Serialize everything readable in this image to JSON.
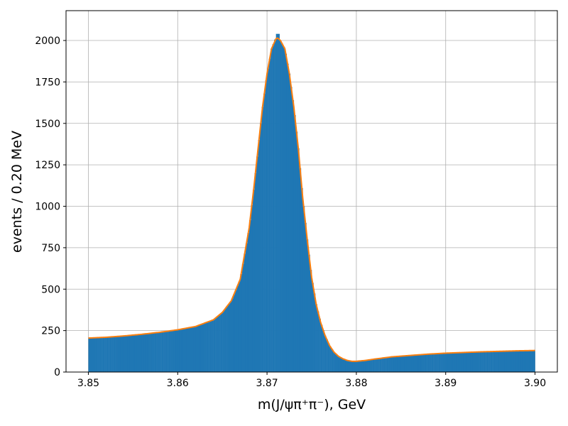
{
  "chart_data": {
    "type": "bar",
    "title": "",
    "xlabel": "m(J/ψπ⁺π⁻), GeV",
    "ylabel": "events / 0.20 MeV",
    "xlim": [
      3.8475,
      3.9025
    ],
    "ylim": [
      0,
      2180
    ],
    "grid": true,
    "x_ticks": [
      "3.85",
      "3.86",
      "3.87",
      "3.88",
      "3.89",
      "3.90"
    ],
    "y_ticks": [
      "0",
      "250",
      "500",
      "750",
      "1000",
      "1250",
      "1500",
      "1750",
      "2000"
    ],
    "bin_width": 0.0002,
    "x_range": [
      3.85,
      3.9
    ],
    "histogram_color": "#1f77b4",
    "fit_color": "#ff7f0e",
    "series": [
      {
        "kind": "histogram",
        "bin_centers": [
          3.85,
          3.852,
          3.854,
          3.856,
          3.858,
          3.86,
          3.862,
          3.864,
          3.865,
          3.866,
          3.867,
          3.868,
          3.8685,
          3.869,
          3.8695,
          3.87,
          3.8705,
          3.871,
          3.8712,
          3.8715,
          3.872,
          3.8725,
          3.873,
          3.8735,
          3.874,
          3.8745,
          3.875,
          3.8755,
          3.876,
          3.8765,
          3.877,
          3.8775,
          3.878,
          3.8785,
          3.879,
          3.8795,
          3.88,
          3.881,
          3.882,
          3.884,
          3.886,
          3.888,
          3.89,
          3.892,
          3.894,
          3.896,
          3.898,
          3.9
        ],
        "values": [
          205,
          210,
          218,
          228,
          240,
          255,
          275,
          315,
          360,
          430,
          560,
          870,
          1100,
          1350,
          1600,
          1800,
          1950,
          2020,
          2060,
          2000,
          1950,
          1800,
          1600,
          1350,
          1050,
          800,
          570,
          410,
          300,
          220,
          160,
          120,
          95,
          80,
          70,
          65,
          65,
          70,
          78,
          92,
          100,
          108,
          114,
          118,
          122,
          125,
          128,
          130
        ]
      },
      {
        "kind": "fit",
        "x": [
          3.85,
          3.852,
          3.854,
          3.856,
          3.858,
          3.86,
          3.862,
          3.864,
          3.865,
          3.866,
          3.867,
          3.868,
          3.8685,
          3.869,
          3.8695,
          3.87,
          3.8705,
          3.871,
          3.8712,
          3.8715,
          3.872,
          3.8725,
          3.873,
          3.8735,
          3.874,
          3.8745,
          3.875,
          3.8755,
          3.876,
          3.8765,
          3.877,
          3.8775,
          3.878,
          3.8785,
          3.879,
          3.8795,
          3.88,
          3.881,
          3.882,
          3.884,
          3.886,
          3.888,
          3.89,
          3.892,
          3.894,
          3.896,
          3.898,
          3.9
        ],
        "values": [
          205,
          210,
          218,
          228,
          240,
          255,
          275,
          315,
          360,
          430,
          560,
          870,
          1100,
          1350,
          1600,
          1800,
          1950,
          2010,
          2015,
          2000,
          1950,
          1800,
          1600,
          1350,
          1050,
          800,
          570,
          410,
          300,
          220,
          160,
          120,
          95,
          80,
          70,
          65,
          65,
          70,
          78,
          92,
          100,
          108,
          114,
          118,
          122,
          125,
          128,
          130
        ]
      }
    ]
  }
}
